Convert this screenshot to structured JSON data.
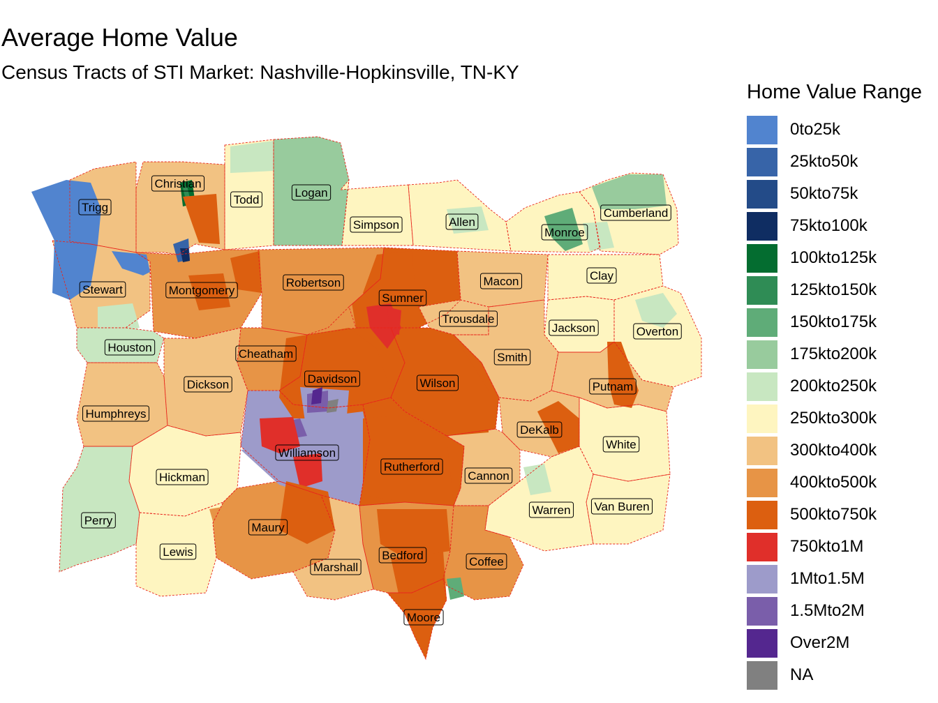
{
  "title": "Average Home Value",
  "subtitle": "Census Tracts of STI Market: Nashville-Hopkinsville, TN-KY",
  "legend": {
    "title": "Home Value Range",
    "items": [
      {
        "label": "0to25k",
        "color": "#5184cf"
      },
      {
        "label": "25kto50k",
        "color": "#3764a8"
      },
      {
        "label": "50kto75k",
        "color": "#234b88"
      },
      {
        "label": "75kto100k",
        "color": "#0f2d62"
      },
      {
        "label": "100kto125k",
        "color": "#046d30"
      },
      {
        "label": "125kto150k",
        "color": "#2f8c55"
      },
      {
        "label": "150kto175k",
        "color": "#5fac78"
      },
      {
        "label": "175kto200k",
        "color": "#98cb9d"
      },
      {
        "label": "200kto250k",
        "color": "#c8e7c1"
      },
      {
        "label": "250kto300k",
        "color": "#fef5c0"
      },
      {
        "label": "300kto400k",
        "color": "#f2c282"
      },
      {
        "label": "400kto500k",
        "color": "#e79446"
      },
      {
        "label": "500kto750k",
        "color": "#dc5f10"
      },
      {
        "label": "750kto1M",
        "color": "#e02f2a"
      },
      {
        "label": "1Mto1.5M",
        "color": "#9d9bca"
      },
      {
        "label": "1.5Mto2M",
        "color": "#7a5eaa"
      },
      {
        "label": "Over2M",
        "color": "#54278f"
      },
      {
        "label": "NA",
        "color": "#808080"
      }
    ]
  },
  "counties": [
    {
      "name": "Christian",
      "range": "300kto400k"
    },
    {
      "name": "Todd",
      "range": "250kto300k"
    },
    {
      "name": "Logan",
      "range": "175kto200k"
    },
    {
      "name": "Trigg",
      "range": "300kto400k"
    },
    {
      "name": "Simpson",
      "range": "250kto300k"
    },
    {
      "name": "Allen",
      "range": "250kto300k"
    },
    {
      "name": "Monroe",
      "range": "250kto300k"
    },
    {
      "name": "Cumberland",
      "range": "250kto300k"
    },
    {
      "name": "Stewart",
      "range": "300kto400k"
    },
    {
      "name": "Montgomery",
      "range": "400kto500k"
    },
    {
      "name": "Robertson",
      "range": "400kto500k"
    },
    {
      "name": "Sumner",
      "range": "500kto750k"
    },
    {
      "name": "Macon",
      "range": "300kto400k"
    },
    {
      "name": "Clay",
      "range": "250kto300k"
    },
    {
      "name": "Trousdale",
      "range": "300kto400k"
    },
    {
      "name": "Jackson",
      "range": "250kto300k"
    },
    {
      "name": "Overton",
      "range": "250kto300k"
    },
    {
      "name": "Houston",
      "range": "200kto250k"
    },
    {
      "name": "Cheatham",
      "range": "400kto500k"
    },
    {
      "name": "Davidson",
      "range": "500kto750k"
    },
    {
      "name": "Smith",
      "range": "300kto400k"
    },
    {
      "name": "Wilson",
      "range": "500kto750k"
    },
    {
      "name": "Putnam",
      "range": "300kto400k"
    },
    {
      "name": "Dickson",
      "range": "300kto400k"
    },
    {
      "name": "Humphreys",
      "range": "300kto400k"
    },
    {
      "name": "DeKalb",
      "range": "300kto400k"
    },
    {
      "name": "White",
      "range": "250kto300k"
    },
    {
      "name": "Williamson",
      "range": "1Mto1.5M"
    },
    {
      "name": "Rutherford",
      "range": "500kto750k"
    },
    {
      "name": "Cannon",
      "range": "300kto400k"
    },
    {
      "name": "Hickman",
      "range": "250kto300k"
    },
    {
      "name": "Warren",
      "range": "250kto300k"
    },
    {
      "name": "Van Buren",
      "range": "250kto300k"
    },
    {
      "name": "Perry",
      "range": "200kto250k"
    },
    {
      "name": "Maury",
      "range": "400kto500k"
    },
    {
      "name": "Lewis",
      "range": "250kto300k"
    },
    {
      "name": "Marshall",
      "range": "300kto400k"
    },
    {
      "name": "Bedford",
      "range": "400kto500k"
    },
    {
      "name": "Coffee",
      "range": "400kto500k"
    },
    {
      "name": "Moore",
      "range": "500kto750k"
    }
  ]
}
